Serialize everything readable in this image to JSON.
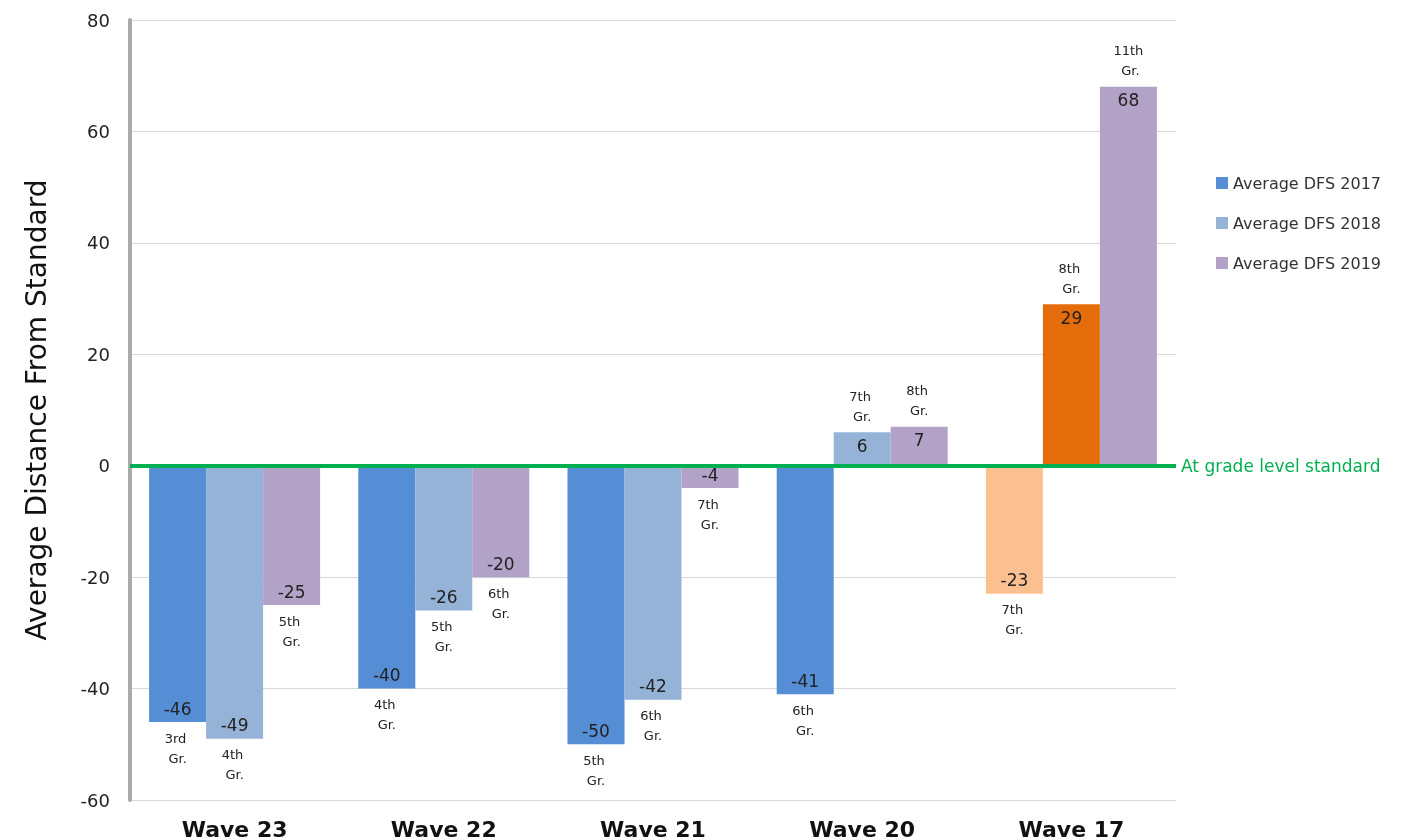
{
  "chart_data": {
    "type": "bar",
    "ylabel": "Average Distance From Standard",
    "categories": [
      "Wave 23",
      "Wave 22",
      "Wave 21",
      "Wave 20",
      "Wave 17"
    ],
    "series": [
      {
        "name": "Average DFS 2017",
        "color": "#558ed5",
        "values": [
          -46,
          -40,
          -50,
          -41,
          -23
        ],
        "colors": [
          "#558ed5",
          "#558ed5",
          "#558ed5",
          "#558ed5",
          "#fac090"
        ]
      },
      {
        "name": "Average DFS 2018",
        "color": "#95b3d7",
        "values": [
          -49,
          -26,
          -42,
          6,
          29
        ],
        "colors": [
          "#95b3d7",
          "#95b3d7",
          "#95b3d7",
          "#95b3d7",
          "#e46c0a"
        ]
      },
      {
        "name": "Average DFS 2019",
        "color": "#b3a2c7",
        "values": [
          -25,
          -20,
          -4,
          7,
          68
        ]
      }
    ],
    "ylim": [
      -60,
      80
    ],
    "yticks": [
      -60,
      -40,
      -20,
      0,
      20,
      40,
      60,
      80
    ],
    "grid": "y",
    "legend": "right",
    "data_labels": true,
    "ref_lines": [
      {
        "axis": "y",
        "value": 0,
        "label": "At grade level standard",
        "color": "#00b050"
      }
    ],
    "annotations": [
      "3rd Gr.",
      "4th Gr.",
      "5th Gr.",
      "6th Gr.",
      "7th Gr.",
      "4th Gr.",
      "5th Gr.",
      "6th Gr.",
      "7th Gr.",
      "8th Gr.",
      "5th Gr.",
      "6th Gr.",
      "7th Gr.",
      "8th Gr.",
      "11th Gr."
    ]
  }
}
